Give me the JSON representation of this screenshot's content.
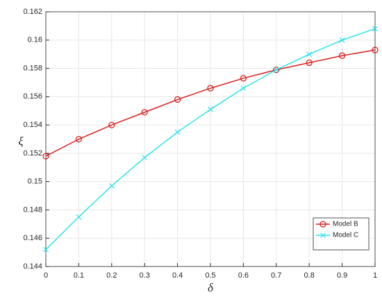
{
  "chart_data": {
    "type": "line",
    "x": [
      0,
      0.1,
      0.2,
      0.3,
      0.4,
      0.5,
      0.6,
      0.7,
      0.8,
      0.9,
      1
    ],
    "series": [
      {
        "name": "Model B",
        "color": "#d81e1e",
        "marker": "o",
        "values": [
          0.1518,
          0.153,
          0.154,
          0.1549,
          0.1558,
          0.1566,
          0.1573,
          0.1579,
          0.1584,
          0.1589,
          0.1593
        ]
      },
      {
        "name": "Model C",
        "color": "#2de3ea",
        "marker": "x",
        "values": [
          0.1452,
          0.1475,
          0.1497,
          0.1517,
          0.1535,
          0.1551,
          0.1566,
          0.1579,
          0.159,
          0.16,
          0.1608
        ]
      }
    ],
    "x_label": "δ",
    "y_label": "ξ",
    "xlim": [
      0,
      1
    ],
    "xticks": [
      0,
      0.1,
      0.2,
      0.3,
      0.4,
      0.5,
      0.6,
      0.7,
      0.8,
      0.9,
      1
    ],
    "ylim": [
      0.144,
      0.162
    ],
    "yticks": [
      0.144,
      0.146,
      0.148,
      0.15,
      0.152,
      0.154,
      0.156,
      0.158,
      0.16,
      0.162
    ],
    "grid": true,
    "legend": "lower right"
  }
}
